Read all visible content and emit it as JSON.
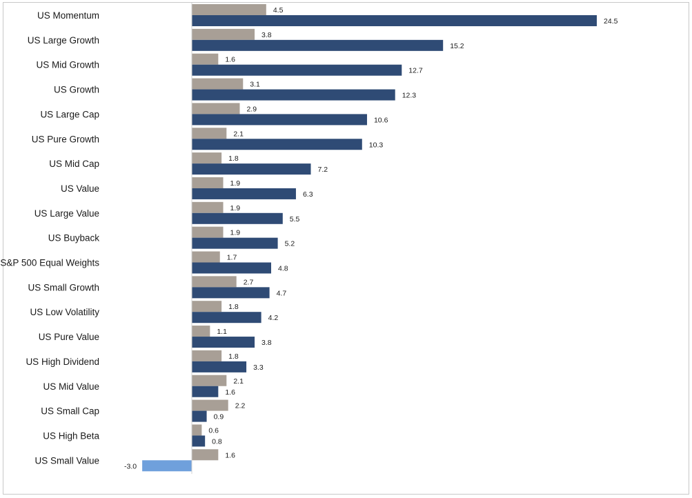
{
  "chart_data": {
    "type": "bar",
    "orientation": "horizontal",
    "title": "",
    "xlabel": "",
    "ylabel": "",
    "grid": false,
    "legend": "none",
    "categories": [
      "US Momentum",
      "US Large Growth",
      "US Mid Growth",
      "US Growth",
      "US Large Cap",
      "US Pure Growth",
      "US Mid Cap",
      "US Value",
      "US Large Value",
      "US Buyback",
      "S&P 500 Equal Weights",
      "US Small Growth",
      "US Low Volatility",
      "US Pure Value",
      "US High Dividend",
      "US Mid Value",
      "US Small Cap",
      "US High Beta",
      "US Small Value"
    ],
    "series": [
      {
        "color": "#a89f96",
        "values": [
          4.5,
          3.8,
          1.6,
          3.1,
          2.9,
          2.1,
          1.8,
          1.9,
          1.9,
          1.9,
          1.7,
          2.7,
          1.8,
          1.1,
          1.8,
          2.1,
          2.2,
          0.6,
          1.6
        ],
        "labels": [
          "4.5",
          "3.8",
          "1.6",
          "3.1",
          "2.9",
          "2.1",
          "1.8",
          "1.9",
          "1.9",
          "1.9",
          "1.7",
          "2.7",
          "1.8",
          "1.1",
          "1.8",
          "2.1",
          "2.2",
          "0.6",
          "1.6"
        ]
      },
      {
        "color": "#2f4b75",
        "negative_color": "#6fa0dc",
        "negative_label_color": "#c00000",
        "values": [
          24.5,
          15.2,
          12.7,
          12.3,
          10.6,
          10.3,
          7.2,
          6.3,
          5.5,
          5.2,
          4.8,
          4.7,
          4.2,
          3.8,
          3.3,
          1.6,
          0.9,
          0.8,
          -3.0
        ],
        "labels": [
          "24.5",
          "15.2",
          "12.7",
          "12.3",
          "10.6",
          "10.3",
          "7.2",
          "6.3",
          "5.5",
          "5.2",
          "4.8",
          "4.7",
          "4.2",
          "3.8",
          "3.3",
          "1.6",
          "0.9",
          "0.8",
          "-3.0"
        ]
      }
    ],
    "xlim": [
      -3.0,
      24.5
    ]
  }
}
